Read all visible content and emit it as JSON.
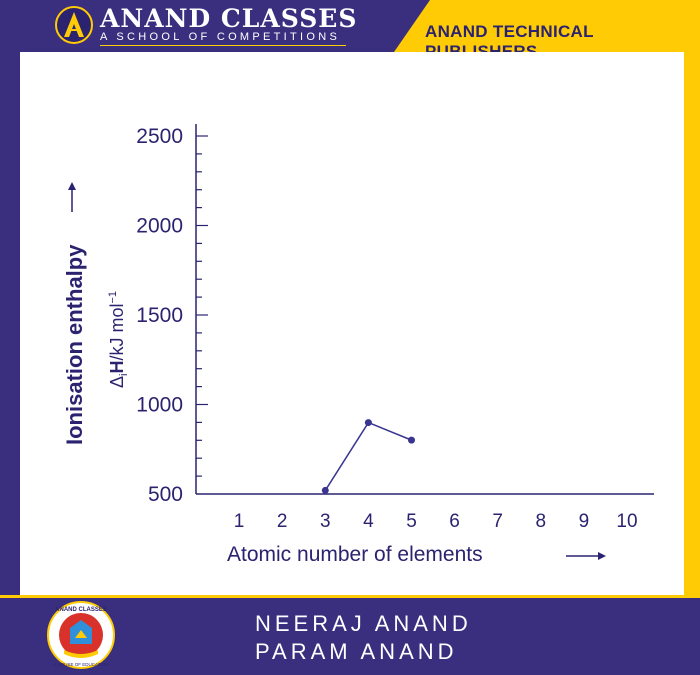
{
  "header": {
    "brand": "ANAND CLASSES",
    "tagline": "A SCHOOL OF COMPETITIONS",
    "publisher": "ANAND TECHNICAL PUBLISHERS"
  },
  "footer": {
    "author1": "NEERAJ ANAND",
    "author2": "PARAM ANAND",
    "logo_top_text": "ANAND CLASSES",
    "logo_bottom_text": "A HOUSE OF EDUCATION"
  },
  "colors": {
    "frame": "#3a2f7f",
    "accent": "#ffcb05",
    "axis": "#2b2370",
    "series": "#3a3590"
  },
  "chart_data": {
    "type": "line",
    "title": "",
    "xlabel": "Atomic number of elements",
    "ylabel_main": "Ionisation enthalpy",
    "ylabel_symbol": "Δ",
    "ylabel_sub": "i",
    "ylabel_bold": "H",
    "ylabel_unit": "/kJ mol",
    "ylabel_sup": "−1",
    "x_ticks": [
      1,
      2,
      3,
      4,
      5,
      6,
      7,
      8,
      9,
      10
    ],
    "y_ticks": [
      500,
      1000,
      1500,
      2000,
      2500
    ],
    "xlim": [
      0,
      10.5
    ],
    "ylim": [
      500,
      2500
    ],
    "grid": false,
    "series": [
      {
        "x": [
          3,
          4,
          5
        ],
        "y": [
          520,
          899,
          801
        ]
      }
    ]
  }
}
